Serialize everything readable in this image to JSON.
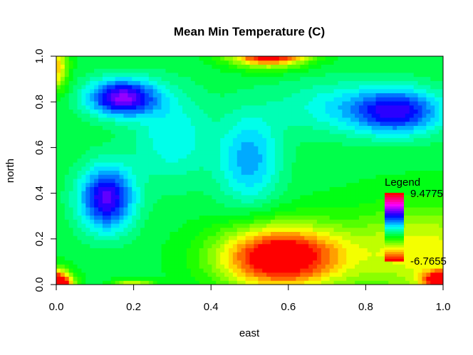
{
  "chart_data": {
    "type": "heatmap",
    "title": "Mean Min Temperature (C)",
    "xlabel": "east",
    "ylabel": "north",
    "xlim": [
      0.0,
      1.0
    ],
    "ylim": [
      0.0,
      1.0
    ],
    "x_ticks": [
      {
        "value": 0.0,
        "label": "0.0"
      },
      {
        "value": 0.2,
        "label": "0.2"
      },
      {
        "value": 0.4,
        "label": "0.4"
      },
      {
        "value": 0.6,
        "label": "0.6"
      },
      {
        "value": 0.8,
        "label": "0.8"
      },
      {
        "value": 1.0,
        "label": "1.0"
      }
    ],
    "y_ticks": [
      {
        "value": 0.0,
        "label": "0.0"
      },
      {
        "value": 0.2,
        "label": "0.2"
      },
      {
        "value": 0.4,
        "label": "0.4"
      },
      {
        "value": 0.6,
        "label": "0.6"
      },
      {
        "value": 0.8,
        "label": "0.8"
      },
      {
        "value": 1.0,
        "label": "1.0"
      }
    ],
    "colorscale": "rainbow",
    "legend": {
      "title": "Legend",
      "max_label": "9.4775",
      "min_label": "-6.7655",
      "position": "right"
    },
    "grid": false
  }
}
